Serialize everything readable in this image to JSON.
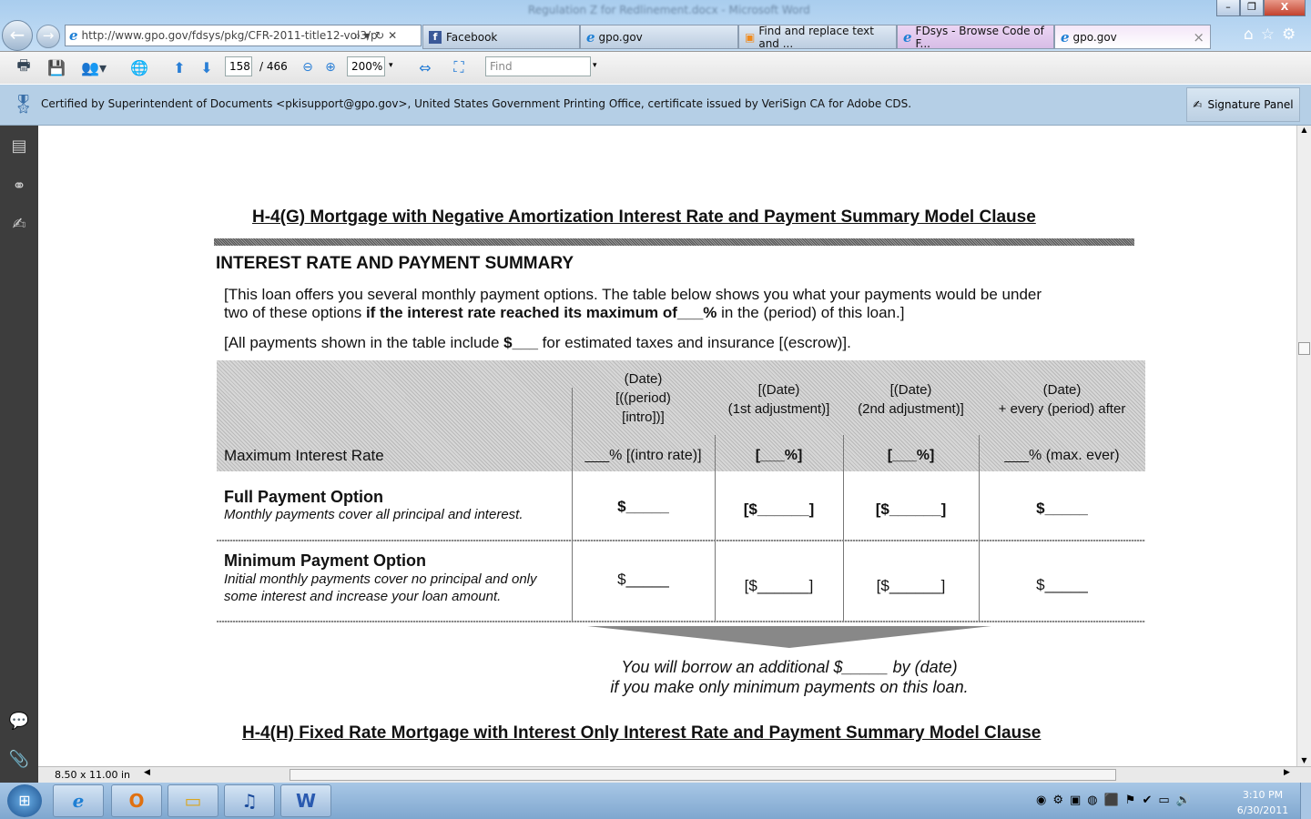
{
  "window": {
    "title": "Regulation Z for Redlinement.docx - Microsoft Word",
    "minimize": "–",
    "restore": "❐",
    "close": "X"
  },
  "browser": {
    "address": "http://www.gpo.gov/fdsys/pkg/CFR-2011-title12-vol3/p",
    "tabs": [
      {
        "label": "Facebook"
      },
      {
        "label": "gpo.gov"
      },
      {
        "label": "Find and replace text and ..."
      },
      {
        "label": "FDsys - Browse Code of F..."
      },
      {
        "label": "gpo.gov"
      }
    ],
    "tab_close": "×"
  },
  "pdf_toolbar": {
    "page_current": "158",
    "page_total": "/ 466",
    "zoom": "200%",
    "find_placeholder": "Find"
  },
  "cert_bar": {
    "text": "Certified by Superintendent of Documents <pkisupport@gpo.gov>, United States Government Printing Office, certificate issued by VeriSign CA for Adobe CDS.",
    "signature_panel": "Signature Panel"
  },
  "document": {
    "title": "H-4(G)  Mortgage with Negative Amortization Interest Rate and Payment  Summary Model Clause",
    "section_heading": "INTEREST RATE AND PAYMENT SUMMARY",
    "intro_line1": "[This loan offers you several monthly payment options.  The table below shows you what your payments would be under",
    "intro_line2_a": "two of these options ",
    "intro_line2_b": "if the interest rate reached its maximum of___%",
    "intro_line2_c": " in the (period) of this loan.]",
    "escrow_a": "[All payments shown in the table include ",
    "escrow_b": "$___",
    "escrow_c": " for estimated taxes and insurance [(escrow)].",
    "col_headers": [
      "(Date)\n[((period)\n[intro])]",
      "[(Date)\n(1st adjustment)]",
      "[(Date)\n(2nd adjustment)]",
      "(Date)\n+ every (period) after"
    ],
    "max_rate_label": "Maximum Interest Rate",
    "max_rate_values": [
      "___% [(intro rate)]",
      "[___%]",
      "[___%]",
      "___% (max. ever)"
    ],
    "rows": [
      {
        "title": "Full Payment Option",
        "desc": "Monthly payments cover all principal and interest.",
        "values": [
          "$_____",
          "[$______]",
          "[$______]",
          "$_____"
        ]
      },
      {
        "title": "Minimum Payment Option",
        "desc": "Initial monthly payments cover no principal and only some interest and increase your loan amount.",
        "values": [
          "$_____",
          "[$______]",
          "[$______]",
          "$_____"
        ]
      }
    ],
    "borrow_line1": "You will borrow an additional $_____ by (date)",
    "borrow_line2": "if you make only minimum payments on this loan.",
    "next_title": "H-4(H)  Fixed Rate Mortgage with Interest Only Interest Rate and Payment  Summary Model Clause"
  },
  "status": {
    "page_size": "8.50 x 11.00 in"
  },
  "taskbar": {
    "time": "3:10 PM",
    "date": "6/30/2011",
    "apps": [
      "internet-explorer",
      "outlook",
      "explorer",
      "itunes",
      "word"
    ]
  }
}
